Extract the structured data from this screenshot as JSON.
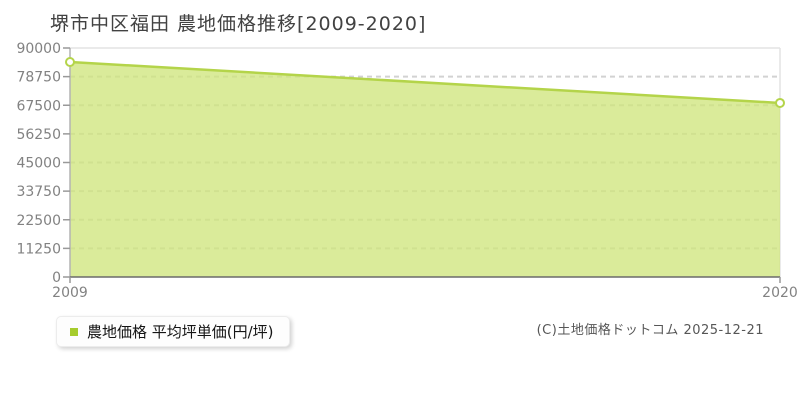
{
  "title": "堺市中区福田 農地価格推移[2009-2020]",
  "legend": {
    "label": "農地価格 平均坪単価(円/坪)",
    "swatch_color": "#a6cc2d"
  },
  "copyright": "(C)土地価格ドットコム 2025-12-21",
  "chart_data": {
    "type": "area",
    "title": "堺市中区福田 農地価格推移[2009-2020]",
    "series": [
      {
        "name": "農地価格 平均坪単価(円/坪)",
        "x": [
          2009,
          2020
        ],
        "values": [
          84500,
          68400
        ]
      }
    ],
    "xlabel": "",
    "ylabel": "",
    "xlim": [
      2009,
      2020
    ],
    "ylim": [
      0,
      90000
    ],
    "x_ticks": [
      2009,
      2020
    ],
    "y_ticks": [
      0,
      11250,
      22500,
      33750,
      45000,
      56250,
      67500,
      78750,
      90000
    ],
    "grid": "horizontal-dashed",
    "legend_position": "bottom-left",
    "colors": {
      "line": "#b4d44a",
      "fill": "#d0e57e",
      "fill_opacity": 0.78,
      "marker_fill": "#ffffff",
      "marker_stroke": "#b4d44a",
      "gridline": "#d2d2d2",
      "frame": "#e3e3e3",
      "y_axis": "#b3b3b3",
      "x_axis": "#6b6b6b",
      "tick": "#999999",
      "tick_label": "#828282"
    }
  }
}
